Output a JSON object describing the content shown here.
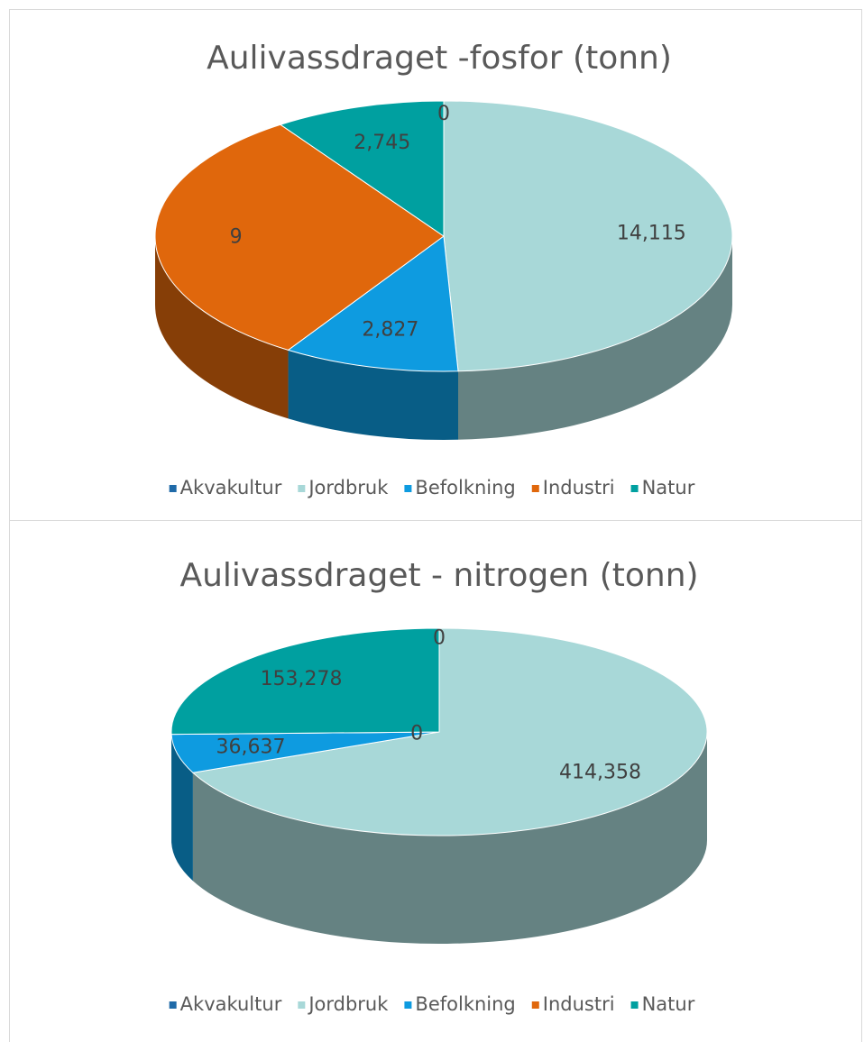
{
  "chart_data": [
    {
      "type": "pie",
      "title": "Aulivassdraget -fosfor (tonn)",
      "categories": [
        "Akvakultur",
        "Jordbruk",
        "Befolkning",
        "Industri",
        "Natur"
      ],
      "values": [
        0,
        14.115,
        2.827,
        9,
        2.745
      ],
      "value_labels": [
        "0",
        "14,115",
        "2,827",
        "9",
        "2,745"
      ],
      "colors": [
        "#1f6aa8",
        "#a8d8d8",
        "#0e9be0",
        "#e0670c",
        "#00a0a0"
      ],
      "legend": "bottom"
    },
    {
      "type": "pie",
      "title": "Aulivassdraget - nitrogen (tonn)",
      "categories": [
        "Akvakultur",
        "Jordbruk",
        "Befolkning",
        "Industri",
        "Natur"
      ],
      "values": [
        0,
        414.358,
        36.637,
        0,
        153.278
      ],
      "value_labels": [
        "0",
        "414,358",
        "36,637",
        "0",
        "153,278"
      ],
      "colors": [
        "#1f6aa8",
        "#a8d8d8",
        "#0e9be0",
        "#e0670c",
        "#00a0a0"
      ],
      "legend": "bottom"
    }
  ]
}
